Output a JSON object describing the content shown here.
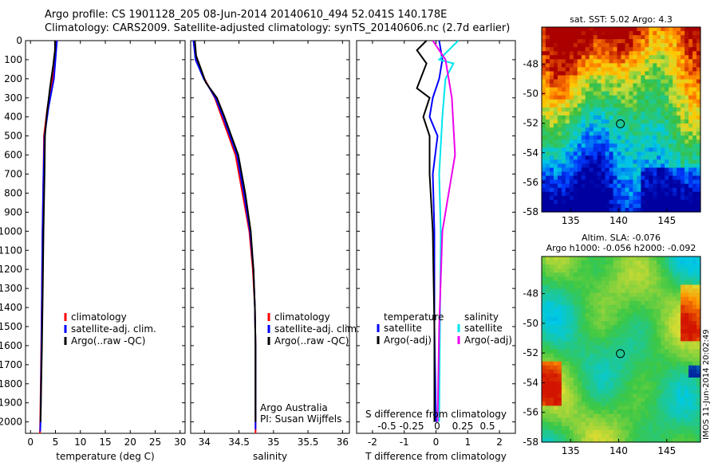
{
  "header": {
    "line1": "Argo profile: CS 1901128_205 08-Jun-2014 20140610_494 52.041S 140.178E",
    "line2": "Climatology: CARS2009. Satellite-adjusted climatology: synTS_20140606.nc (2.7d earlier)"
  },
  "stamp": "IMOS 11-Jun-2014 20:02:49",
  "chart_data": [
    {
      "type": "line",
      "xlabel": "temperature (deg C)",
      "ylabel": "",
      "xlim": [
        -1,
        31
      ],
      "ylim": [
        2060,
        0
      ],
      "xticks": [
        0,
        5,
        10,
        15,
        20,
        25,
        30
      ],
      "yticks": [
        0,
        100,
        200,
        300,
        400,
        500,
        600,
        700,
        800,
        900,
        1000,
        1100,
        1200,
        1300,
        1400,
        1500,
        1600,
        1700,
        1800,
        1900,
        2000
      ],
      "legend": [
        "climatology",
        "satellite-adj. clim.",
        "Argo(..raw -QC)"
      ],
      "colors": {
        "climatology": "#ff0000",
        "satellite": "#0000ff",
        "argo": "#000000"
      },
      "series": [
        {
          "name": "climatology",
          "x": [
            5.2,
            4.7,
            4.4,
            3.4,
            2.7,
            2.6,
            2.4,
            2.3,
            2.15,
            2.05,
            1.95,
            1.9
          ],
          "y": [
            0,
            100,
            200,
            350,
            500,
            700,
            1000,
            1300,
            1600,
            1800,
            2000,
            2060
          ]
        },
        {
          "name": "satellite-adj. clim.",
          "x": [
            5.3,
            5.0,
            4.7,
            3.6,
            2.8,
            2.6,
            2.4,
            2.3,
            2.2,
            2.1,
            2.0,
            1.95
          ],
          "y": [
            0,
            100,
            200,
            350,
            500,
            700,
            1000,
            1300,
            1600,
            1800,
            2000,
            2050
          ]
        },
        {
          "name": "Argo(..raw -QC)",
          "x": [
            4.9,
            4.9,
            4.6,
            3.9,
            3.2,
            2.9,
            2.8,
            2.6,
            2.45,
            2.3,
            2.15,
            2.05,
            2.0
          ],
          "y": [
            0,
            50,
            120,
            250,
            400,
            500,
            700,
            1000,
            1300,
            1600,
            1800,
            1950,
            2000
          ]
        }
      ]
    },
    {
      "type": "line",
      "xlabel": "salinity",
      "ylabel": "",
      "xlim": [
        33.8,
        36.1
      ],
      "ylim": [
        2060,
        0
      ],
      "xticks": [
        34,
        34.5,
        35,
        35.5,
        36
      ],
      "legend": [
        "climatology",
        "satellite-adj. clim.",
        "Argo(..raw -QC)"
      ],
      "annotation": [
        "Argo Australia",
        "PI: Susan Wijffels"
      ],
      "series": [
        {
          "name": "climatology",
          "x": [
            33.85,
            33.88,
            34.0,
            34.15,
            34.25,
            34.35,
            34.45,
            34.55,
            34.65,
            34.7,
            34.73,
            34.74,
            34.74,
            34.74
          ],
          "y": [
            0,
            100,
            200,
            300,
            400,
            500,
            600,
            800,
            1000,
            1200,
            1400,
            1600,
            1800,
            2060
          ]
        },
        {
          "name": "satellite-adj. clim.",
          "x": [
            33.84,
            33.87,
            33.99,
            34.16,
            34.27,
            34.37,
            34.47,
            34.57,
            34.66,
            34.71,
            34.73,
            34.74,
            34.74,
            34.74
          ],
          "y": [
            0,
            100,
            200,
            300,
            400,
            500,
            600,
            800,
            1000,
            1200,
            1400,
            1600,
            1800,
            2040
          ]
        },
        {
          "name": "Argo(..raw -QC)",
          "x": [
            33.86,
            33.88,
            33.95,
            34.02,
            34.18,
            34.29,
            34.39,
            34.49,
            34.59,
            34.67,
            34.71,
            34.73,
            34.74,
            34.74
          ],
          "y": [
            0,
            80,
            150,
            220,
            300,
            400,
            500,
            600,
            800,
            1000,
            1200,
            1400,
            1600,
            2000
          ]
        }
      ]
    },
    {
      "type": "line",
      "xlabel": "T difference from climatology",
      "secondary_xlabel": "S difference from climatology",
      "xlim": [
        -2.5,
        2.5
      ],
      "ylim": [
        2060,
        0
      ],
      "xticks": [
        -2,
        -1,
        0,
        1,
        2
      ],
      "xticks_secondary_labels": [
        "-0.5",
        "-0.25",
        "0",
        "0.25",
        "0.5"
      ],
      "legend_groups": [
        {
          "title": "temperature",
          "items": [
            "satellite",
            "Argo(-adj)"
          ]
        },
        {
          "title": "salinity",
          "items": [
            "satellite",
            "Argo(-adj)"
          ]
        }
      ],
      "series": [
        {
          "name": "temperature satellite",
          "x": [
            0.1,
            0.2,
            0.1,
            -0.1,
            -0.2,
            0.05,
            -0.1,
            -0.05,
            -0.05,
            0.0
          ],
          "y": [
            0,
            100,
            200,
            300,
            400,
            500,
            700,
            1000,
            1500,
            2000
          ]
        },
        {
          "name": "temperature Argo(-adj)",
          "x": [
            -0.3,
            -0.6,
            -0.3,
            -0.6,
            -0.2,
            -0.4,
            -0.2,
            -0.2,
            -0.1,
            -0.05,
            -0.05
          ],
          "y": [
            0,
            50,
            120,
            250,
            300,
            400,
            500,
            700,
            1000,
            1500,
            2000
          ]
        },
        {
          "name": "salinity satellite",
          "x": [
            0.7,
            0.1,
            0.55,
            0.3,
            0.2,
            0.1,
            0.15,
            0.1
          ],
          "y": [
            0,
            100,
            120,
            200,
            400,
            700,
            1000,
            2000
          ]
        },
        {
          "name": "salinity Argo(-adj)",
          "x": [
            -0.1,
            0.3,
            0.5,
            0.6,
            0.4,
            0.2,
            0.1,
            0.05
          ],
          "y": [
            0,
            100,
            300,
            600,
            800,
            1000,
            1500,
            2000
          ]
        }
      ]
    },
    {
      "type": "heatmap",
      "title": "sat. SST: 5.02 Argo: 4.3",
      "xlim": [
        132,
        148.5
      ],
      "ylim": [
        -58,
        -45.5
      ],
      "xticks": [
        135,
        140,
        145
      ],
      "yticks": [
        -48,
        -50,
        -52,
        -54,
        -56,
        -58
      ],
      "marker": {
        "lon": 140.178,
        "lat": -52.041
      }
    },
    {
      "type": "heatmap",
      "title_lines": [
        "Altim. SLA: -0.076",
        "Argo h1000: -0.056 h2000: -0.092"
      ],
      "xlim": [
        132,
        148.5
      ],
      "ylim": [
        -58,
        -45.5
      ],
      "xticks": [
        135,
        140,
        145
      ],
      "yticks": [
        -48,
        -50,
        -52,
        -54,
        -56,
        -58
      ],
      "marker": {
        "lon": 140.178,
        "lat": -52.041
      }
    }
  ]
}
